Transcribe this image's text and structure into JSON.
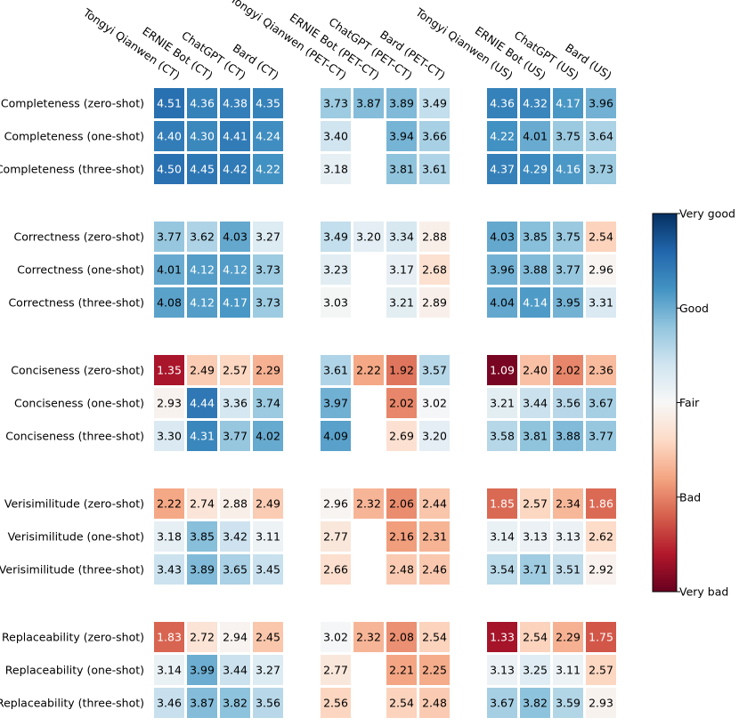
{
  "chart_data": {
    "type": "heatmap",
    "title": "",
    "columns": [
      "Tongyi Qianwen (CT)",
      "ERNIE Bot (CT)",
      "ChatGPT (CT)",
      "Bard (CT)",
      "Tongyi Qianwen (PET-CT)",
      "ERNIE Bot (PET-CT)",
      "ChatGPT (PET-CT)",
      "Bard (PET-CT)",
      "Tongyi Qianwen (US)",
      "ERNIE Bot (US)",
      "ChatGPT (US)",
      "Bard (US)"
    ],
    "rows": [
      "Completeness (zero-shot)",
      "Completeness (one-shot)",
      "Completeness (three-shot)",
      "Correctness (zero-shot)",
      "Correctness (one-shot)",
      "Correctness (three-shot)",
      "Conciseness (zero-shot)",
      "Conciseness (one-shot)",
      "Conciseness (three-shot)",
      "Verisimilitude (zero-shot)",
      "Verisimilitude (one-shot)",
      "Verisimilitude (three-shot)",
      "Replaceability (zero-shot)",
      "Replaceability (one-shot)",
      "Replaceability (three-shot)"
    ],
    "values": [
      [
        4.51,
        4.36,
        4.38,
        4.35,
        3.73,
        3.87,
        3.89,
        3.49,
        4.36,
        4.32,
        4.17,
        3.96
      ],
      [
        4.4,
        4.3,
        4.41,
        4.24,
        3.4,
        null,
        3.94,
        3.66,
        4.22,
        4.01,
        3.75,
        3.64
      ],
      [
        4.5,
        4.45,
        4.42,
        4.22,
        3.18,
        null,
        3.81,
        3.61,
        4.37,
        4.29,
        4.16,
        3.73
      ],
      [
        3.77,
        3.62,
        4.03,
        3.27,
        3.49,
        3.2,
        3.34,
        2.88,
        4.03,
        3.85,
        3.75,
        2.54
      ],
      [
        4.01,
        4.12,
        4.12,
        3.73,
        3.23,
        null,
        3.17,
        2.68,
        3.96,
        3.88,
        3.77,
        2.96
      ],
      [
        4.08,
        4.12,
        4.17,
        3.73,
        3.03,
        null,
        3.21,
        2.89,
        4.04,
        4.14,
        3.95,
        3.31
      ],
      [
        1.35,
        2.49,
        2.57,
        2.29,
        3.61,
        2.22,
        1.92,
        3.57,
        1.09,
        2.4,
        2.02,
        2.36
      ],
      [
        2.93,
        4.44,
        3.36,
        3.74,
        3.97,
        null,
        2.02,
        3.02,
        3.21,
        3.44,
        3.56,
        3.67
      ],
      [
        3.3,
        4.31,
        3.77,
        4.02,
        4.09,
        null,
        2.69,
        3.2,
        3.58,
        3.81,
        3.88,
        3.77
      ],
      [
        2.22,
        2.74,
        2.88,
        2.49,
        2.96,
        2.32,
        2.06,
        2.44,
        1.85,
        2.57,
        2.34,
        1.86
      ],
      [
        3.18,
        3.85,
        3.42,
        3.11,
        2.77,
        null,
        2.16,
        2.31,
        3.14,
        3.13,
        3.13,
        2.62
      ],
      [
        3.43,
        3.89,
        3.65,
        3.45,
        2.66,
        null,
        2.48,
        2.46,
        3.54,
        3.71,
        3.51,
        2.92
      ],
      [
        1.83,
        2.72,
        2.94,
        2.45,
        3.02,
        2.32,
        2.08,
        2.54,
        1.33,
        2.54,
        2.29,
        1.75
      ],
      [
        3.14,
        3.99,
        3.44,
        3.27,
        2.77,
        null,
        2.21,
        2.25,
        3.13,
        3.25,
        3.11,
        2.57
      ],
      [
        3.46,
        3.87,
        3.82,
        3.56,
        2.56,
        null,
        2.54,
        2.48,
        3.67,
        3.82,
        3.59,
        2.93
      ]
    ],
    "colorbar": {
      "range": [
        1,
        5
      ],
      "colormap": "RdBu",
      "ticks": [
        {
          "value": 5,
          "label": "Very good"
        },
        {
          "value": 4,
          "label": "Good"
        },
        {
          "value": 3,
          "label": "Fair"
        },
        {
          "value": 2,
          "label": "Bad"
        },
        {
          "value": 1,
          "label": "Very bad"
        }
      ]
    }
  }
}
